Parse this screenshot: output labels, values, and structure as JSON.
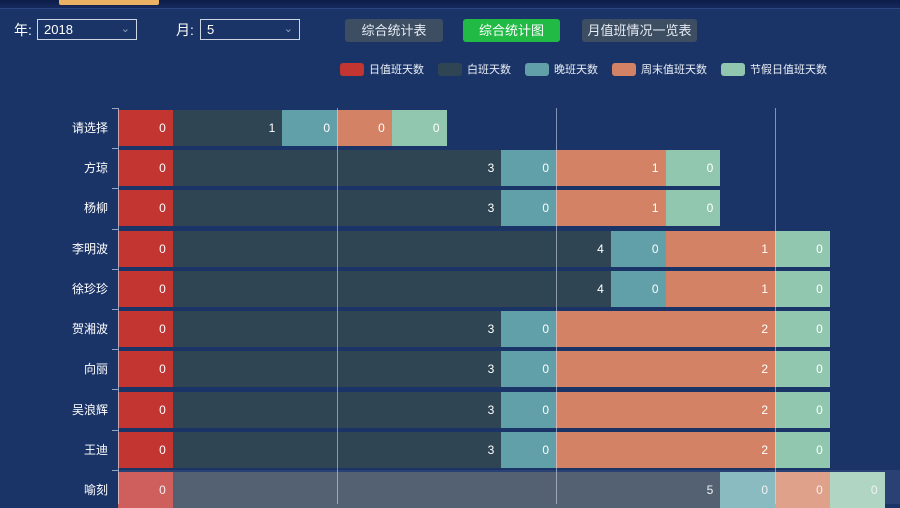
{
  "header": {
    "year_label": "年:",
    "year_value": "2018",
    "month_label": "月:",
    "month_value": "5"
  },
  "buttons": [
    {
      "label": "综合统计表",
      "active": false
    },
    {
      "label": "综合统计图",
      "active": true
    },
    {
      "label": "月值班情况一览表",
      "active": false
    }
  ],
  "accent_colors": {
    "top_indicator": "#ecb264",
    "active_button_green": "#21ba45",
    "button_slate": "#3d4e63",
    "background_navy": "#1b3467"
  },
  "chart_data": {
    "type": "bar",
    "orientation": "horizontal",
    "stacked": true,
    "grid_on": true,
    "legend_position": "top",
    "categories": [
      "请选择",
      "方琼",
      "杨柳",
      "李明波",
      "徐珍珍",
      "贺湘波",
      "向丽",
      "吴浪辉",
      "王迪",
      "喻刻"
    ],
    "series": [
      {
        "key": "day-duty-days",
        "name": "日值班天数",
        "color": "#c23531",
        "hover_color": "#ce5f5c",
        "values": [
          0,
          0,
          0,
          0,
          0,
          0,
          0,
          0,
          0,
          0
        ]
      },
      {
        "key": "day-shift-days",
        "name": "白班天数",
        "color": "#2f4554",
        "hover_color": "#546173",
        "values": [
          1,
          3,
          3,
          4,
          4,
          3,
          3,
          3,
          3,
          5
        ]
      },
      {
        "key": "night-shift-days",
        "name": "晚班天数",
        "color": "#61a0a8",
        "hover_color": "#8abbc1",
        "values": [
          0,
          0,
          0,
          0,
          0,
          0,
          0,
          0,
          0,
          0
        ]
      },
      {
        "key": "weekend-duty-days",
        "name": "周末值班天数",
        "color": "#d48265",
        "hover_color": "#dfa18a",
        "values": [
          0,
          1,
          1,
          1,
          1,
          2,
          2,
          2,
          2,
          0
        ]
      },
      {
        "key": "holiday-duty-days",
        "name": "节假日值班天数",
        "color": "#91c7ae",
        "hover_color": "#b0d6c3",
        "values": [
          0,
          0,
          0,
          0,
          0,
          0,
          0,
          0,
          0,
          0
        ]
      }
    ],
    "highlighted_row_index": 9,
    "zero_value_min_units": 0.5,
    "x_gridline_values": [
      2,
      4,
      6
    ],
    "xlim": [
      0,
      7.15
    ]
  }
}
